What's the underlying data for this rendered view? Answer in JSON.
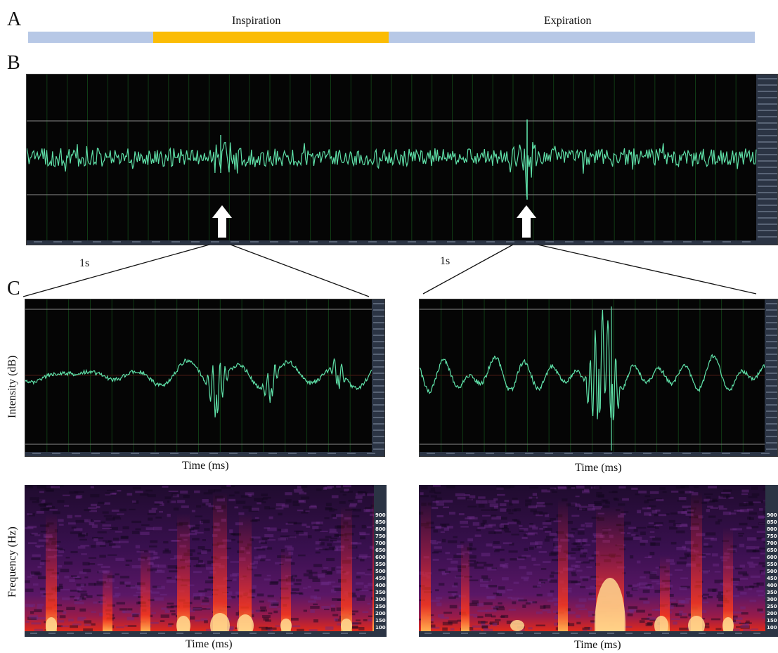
{
  "labels": {
    "panel_a": "A",
    "panel_b": "B",
    "panel_c": "C",
    "inspiration": "Inspiration",
    "expiration": "Expiration",
    "scale_left": "1s",
    "scale_right": "1s",
    "y_intensity": "Intensity (dB)",
    "y_frequency": "Frequency (Hz)",
    "x_time": "Time (ms)"
  },
  "colors": {
    "inspiration_bar": "#fbbc05",
    "expiration_bar": "#b7c8e6",
    "waveform": "#5fe0a8",
    "scope_bg": "#050505"
  },
  "icons": [
    "arrow-up-icon",
    "arrow-up-icon"
  ],
  "frequency_ticks": [
    900,
    850,
    800,
    750,
    700,
    650,
    600,
    550,
    500,
    450,
    400,
    350,
    300,
    250,
    200,
    150,
    100
  ]
}
